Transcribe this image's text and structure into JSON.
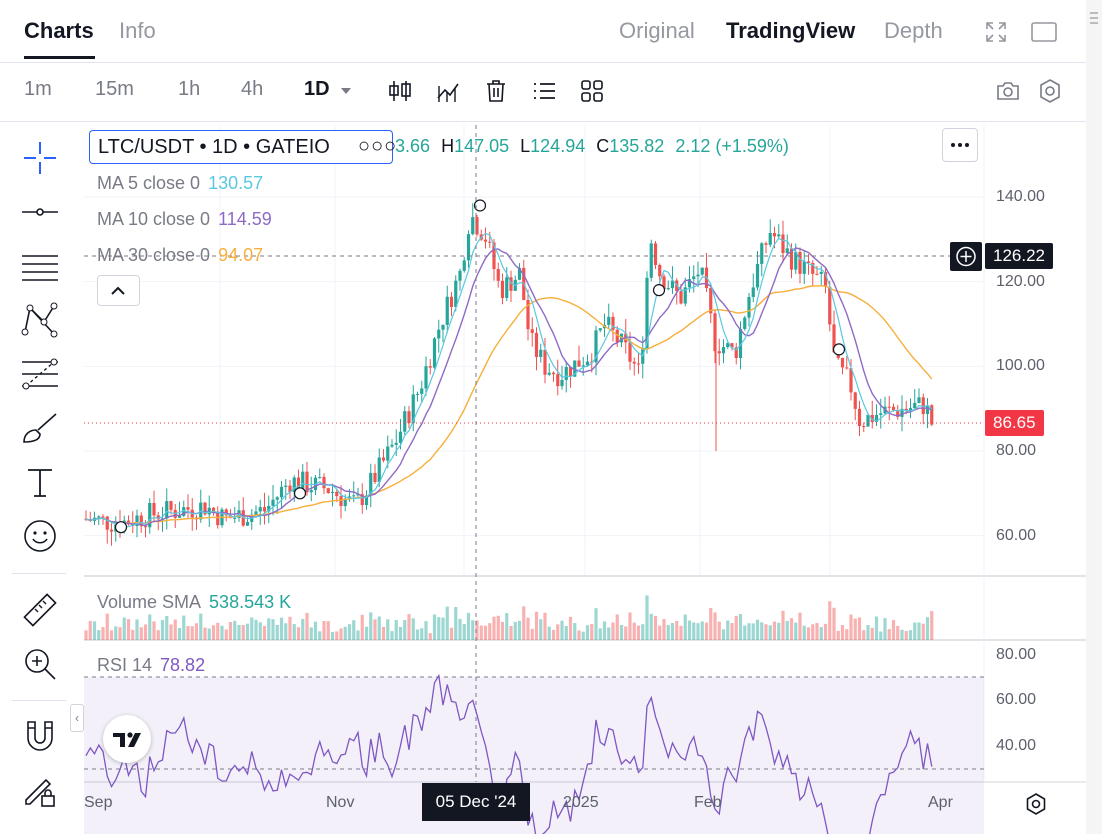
{
  "header": {
    "tabs": [
      {
        "label": "Charts",
        "active": true
      },
      {
        "label": "Info",
        "active": false
      }
    ],
    "views": [
      {
        "label": "Original",
        "active": false
      },
      {
        "label": "TradingView",
        "active": true
      },
      {
        "label": "Depth",
        "active": false
      }
    ]
  },
  "toolbar": {
    "timeframes": [
      {
        "label": "1m"
      },
      {
        "label": "15m"
      },
      {
        "label": "1h"
      },
      {
        "label": "4h"
      },
      {
        "label": "1D",
        "active": true
      }
    ],
    "icons": [
      "candles-icon",
      "indicators-icon",
      "trash-icon",
      "list-icon",
      "layout-icon",
      "camera-icon",
      "settings-icon"
    ]
  },
  "left_tools": [
    "crosshair-icon",
    "horizontal-line-icon",
    "parallel-lines-icon",
    "pattern-icon",
    "fib-icon",
    "brush-icon",
    "text-icon",
    "emoji-icon",
    "ruler-icon",
    "zoom-icon",
    "magnet-icon",
    "lock-pencil-icon"
  ],
  "legend": {
    "symbol": "LTC/USDT • 1D • GATEIO",
    "dots": "○○○",
    "open_partial": "3.66",
    "h_label": "H",
    "h_value": "147.05",
    "l_label": "L",
    "l_value": "124.94",
    "c_label": "C",
    "c_value": "135.82",
    "change": "2.12 (+1.59%)",
    "ma": [
      {
        "label": "MA 5 close 0",
        "value": "130.57",
        "color": "#4fc3f7"
      },
      {
        "label": "MA 10 close 0",
        "value": "114.59",
        "color": "#7e57c2"
      },
      {
        "label": "MA 30 close 0",
        "value": "94.07",
        "color": "#f6a623"
      }
    ]
  },
  "colors": {
    "up": "#26a69a",
    "down": "#ef5350",
    "ma5": "#5ac8e0",
    "ma10": "#8e6ac8",
    "ma30": "#f7ae3b",
    "rsi": "#7e57c2",
    "accent": "#2962ff"
  },
  "price_axis": {
    "labels": [
      "140.00",
      "120.00",
      "100.00",
      "80.00",
      "60.00"
    ]
  },
  "crosshair_price": "126.22",
  "last_price": "86.65",
  "volume": {
    "label": "Volume SMA",
    "value": "538.543 K"
  },
  "rsi": {
    "label": "RSI 14",
    "value": "78.82",
    "axis": [
      "80.00",
      "60.00",
      "40.00"
    ]
  },
  "time_axis": {
    "labels": [
      "Sep",
      "Nov",
      "2025",
      "Feb",
      "Apr"
    ],
    "crosshair_date": "05 Dec '24"
  },
  "chart_data": {
    "type": "candlestick",
    "ylim": [
      55,
      150
    ],
    "x_range": [
      "2024-08-25",
      "2025-03-31"
    ]
  }
}
